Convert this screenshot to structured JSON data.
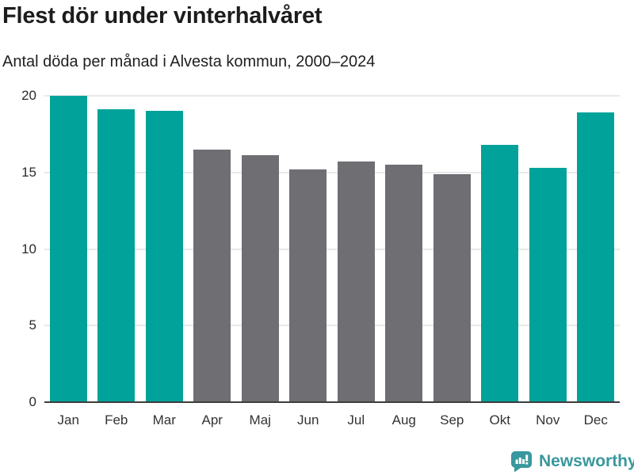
{
  "header": {
    "title": "Flest dör under vinterhalvåret",
    "subtitle": "Antal döda per månad i Alvesta kommun, 2000–2024"
  },
  "chart_data": {
    "type": "bar",
    "title": "Flest dör under vinterhalvåret",
    "subtitle": "Antal döda per månad i Alvesta kommun, 2000–2024",
    "categories": [
      "Jan",
      "Feb",
      "Mar",
      "Apr",
      "Maj",
      "Jun",
      "Jul",
      "Aug",
      "Sep",
      "Okt",
      "Nov",
      "Dec"
    ],
    "values": [
      20.0,
      19.1,
      19.0,
      16.5,
      16.1,
      15.2,
      15.7,
      15.5,
      14.9,
      16.8,
      15.3,
      18.9
    ],
    "bar_colors": [
      "#00a29a",
      "#00a29a",
      "#00a29a",
      "#6e6e73",
      "#6e6e73",
      "#6e6e73",
      "#6e6e73",
      "#6e6e73",
      "#6e6e73",
      "#00a29a",
      "#00a29a",
      "#00a29a"
    ],
    "xlabel": "",
    "ylabel": "",
    "ylim": [
      0,
      20
    ],
    "yticks": [
      0,
      5,
      10,
      15,
      20
    ],
    "grid": "horizontal",
    "legend": "none",
    "highlight_color": "#00a29a",
    "muted_color": "#6e6e73"
  },
  "colors": {
    "accent_teal": "#00a29a",
    "muted_gray": "#6e6e73",
    "gridline": "#e8e8e8",
    "axis": "#3d3d3d",
    "logo_teal": "#39989d",
    "text": "#1c1c1c"
  },
  "footer": {
    "brand": "Newsworthy",
    "logo_icon": "bar-chart-speech-bubble-icon"
  }
}
